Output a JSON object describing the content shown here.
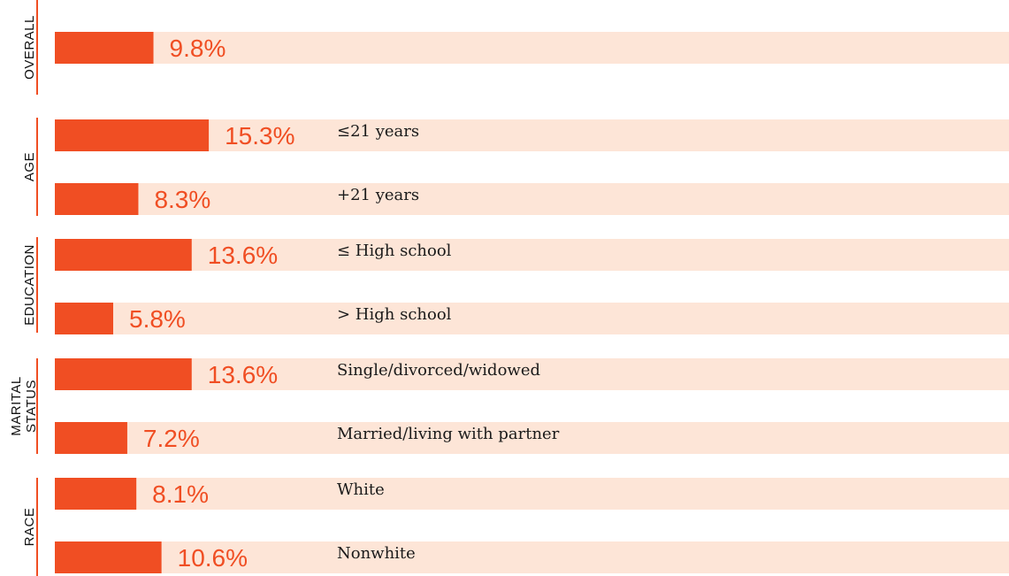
{
  "chart_data": {
    "type": "bar",
    "orientation": "horizontal",
    "value_format": "percent",
    "xlim": [
      0,
      70
    ],
    "colors": {
      "bar": "#f04e23",
      "track": "#fde5d7",
      "group_rule": "#f04e23"
    },
    "groups": [
      {
        "label": "OVERALL",
        "rows": [
          {
            "category": "",
            "value": 9.8,
            "value_label": "9.8%"
          }
        ]
      },
      {
        "label": "AGE",
        "rows": [
          {
            "category": "≤21 years",
            "value": 15.3,
            "value_label": "15.3%"
          },
          {
            "category": "+21 years",
            "value": 8.3,
            "value_label": "8.3%"
          }
        ]
      },
      {
        "label": "EDUCATION",
        "rows": [
          {
            "category": "≤ High school",
            "value": 13.6,
            "value_label": "13.6%"
          },
          {
            "category": "> High school",
            "value": 5.8,
            "value_label": "5.8%"
          }
        ]
      },
      {
        "label_lines": [
          "MARITAL",
          "STATUS"
        ],
        "rows": [
          {
            "category": "Single/divorced/widowed",
            "value": 13.6,
            "value_label": "13.6%"
          },
          {
            "category": "Married/living with partner",
            "value": 7.2,
            "value_label": "7.2%"
          }
        ]
      },
      {
        "label": "RACE",
        "rows": [
          {
            "category": "White",
            "value": 8.1,
            "value_label": "8.1%"
          },
          {
            "category": "Nonwhite",
            "value": 10.6,
            "value_label": "10.6%"
          }
        ]
      }
    ]
  }
}
